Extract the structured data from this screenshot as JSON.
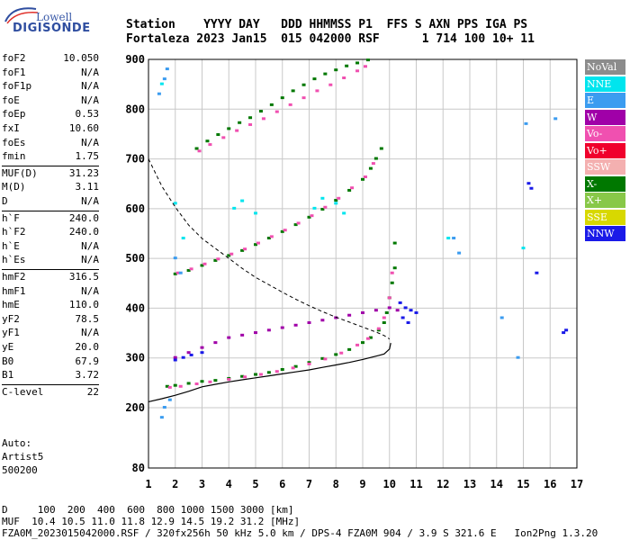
{
  "logo": {
    "top_text": "Lowell",
    "main_text": "DIGISONDE"
  },
  "header": {
    "row1": "Station    YYYY DAY   DDD HHMMSS P1  FFS S AXN PPS IGA PS",
    "row2": "Fortaleza 2023 Jan15  015 042000 RSF      1 714 100 10+ 11"
  },
  "params": [
    {
      "name": "foF2",
      "value": "10.050"
    },
    {
      "name": "foF1",
      "value": "N/A"
    },
    {
      "name": "foF1p",
      "value": "N/A"
    },
    {
      "name": "foE",
      "value": "N/A"
    },
    {
      "name": "foEp",
      "value": "0.53"
    },
    {
      "name": "fxI",
      "value": "10.60"
    },
    {
      "name": "foEs",
      "value": "N/A"
    },
    {
      "name": "fmin",
      "value": "1.75"
    },
    {
      "name": "MUF(D)",
      "value": "31.23"
    },
    {
      "name": "M(D)",
      "value": "3.11"
    },
    {
      "name": "D",
      "value": "N/A"
    },
    {
      "name": "h`F",
      "value": "240.0"
    },
    {
      "name": "h`F2",
      "value": "240.0"
    },
    {
      "name": "h`E",
      "value": "N/A"
    },
    {
      "name": "h`Es",
      "value": "N/A"
    },
    {
      "name": "hmF2",
      "value": "316.5"
    },
    {
      "name": "hmF1",
      "value": "N/A"
    },
    {
      "name": "hmE",
      "value": "110.0"
    },
    {
      "name": "yF2",
      "value": "78.5"
    },
    {
      "name": "yF1",
      "value": "N/A"
    },
    {
      "name": "yE",
      "value": "20.0"
    },
    {
      "name": "B0",
      "value": "67.9"
    },
    {
      "name": "B1",
      "value": "3.72"
    },
    {
      "name": "C-level",
      "value": "22"
    }
  ],
  "info": {
    "line1": "Auto:",
    "line2": "Artist5",
    "line3": "500200"
  },
  "legend": [
    {
      "label": "NoVal",
      "color": "#8c8c8c"
    },
    {
      "label": "NNE",
      "color": "#00e5ee"
    },
    {
      "label": "E",
      "color": "#3b9cf0"
    },
    {
      "label": "W",
      "color": "#a000a8"
    },
    {
      "label": "Vo-",
      "color": "#f050b0"
    },
    {
      "label": "Vo+",
      "color": "#f0002c"
    },
    {
      "label": "SSW",
      "color": "#f4b0b0"
    },
    {
      "label": "X-",
      "color": "#007800"
    },
    {
      "label": "X+",
      "color": "#88c848"
    },
    {
      "label": "SSE",
      "color": "#d8d800"
    },
    {
      "label": "NNW",
      "color": "#1a1ae8"
    }
  ],
  "footer": {
    "row1": "D     100  200  400  600  800 1000 1500 3000 [km]",
    "row2": "MUF  10.4 10.5 11.0 11.8 12.9 14.5 19.2 31.2 [MHz]",
    "row3": "FZA0M_2023015042000.RSF / 320fx256h 50 kHz 5.0 km / DPS-4 FZA0M 904 / 3.9 S 321.6 E   Ion2Png 1.3.20"
  },
  "chart_data": {
    "type": "scatter",
    "x_ticks": [
      1,
      2,
      3,
      4,
      5,
      6,
      7,
      8,
      9,
      10,
      11,
      12,
      13,
      14,
      15,
      16,
      17
    ],
    "y_ticks": [
      80,
      200,
      300,
      400,
      500,
      600,
      700,
      800,
      900
    ],
    "xlim": [
      1,
      17
    ],
    "ylim": [
      80,
      900
    ],
    "grid": true,
    "legend_position": "right",
    "series": [
      {
        "color": "#007800",
        "x": [
          1.7,
          2,
          2.5,
          3,
          3.5,
          4,
          4.5,
          5,
          5.5,
          6,
          6.5,
          7,
          7.5,
          8,
          8.5,
          9,
          9.3,
          9.6,
          9.8,
          9.9,
          10,
          10.1,
          10.2,
          10.2
        ],
        "y": [
          242,
          244,
          248,
          252,
          254,
          258,
          262,
          266,
          270,
          276,
          282,
          290,
          298,
          306,
          316,
          330,
          340,
          355,
          370,
          390,
          420,
          450,
          480,
          530
        ]
      },
      {
        "color": "#f050b0",
        "x": [
          1.8,
          2.2,
          2.8,
          3.3,
          4,
          4.6,
          5.2,
          5.8,
          6.4,
          7,
          7.6,
          8.2,
          8.8,
          9.2,
          9.6,
          9.8,
          10,
          10.1
        ],
        "y": [
          240,
          242,
          247,
          251,
          256,
          261,
          266,
          272,
          279,
          287,
          297,
          309,
          325,
          338,
          358,
          380,
          420,
          470
        ]
      },
      {
        "color": "#007800",
        "x": [
          2,
          2.5,
          3,
          3.5,
          4,
          4.5,
          5,
          5.5,
          6,
          6.5,
          7,
          7.5,
          8,
          8.5,
          9,
          9.3,
          9.5,
          9.7
        ],
        "y": [
          468,
          475,
          485,
          495,
          505,
          515,
          527,
          540,
          553,
          567,
          582,
          598,
          616,
          636,
          658,
          680,
          700,
          720
        ]
      },
      {
        "color": "#f050b0",
        "x": [
          2.1,
          2.6,
          3.1,
          3.6,
          4.1,
          4.6,
          5.1,
          5.6,
          6.1,
          6.6,
          7.1,
          7.6,
          8.1,
          8.6,
          9.1,
          9.4
        ],
        "y": [
          470,
          478,
          488,
          498,
          508,
          518,
          530,
          543,
          556,
          570,
          585,
          602,
          620,
          641,
          663,
          690
        ]
      },
      {
        "color": "#007800",
        "x": [
          2.8,
          3.2,
          3.6,
          4,
          4.4,
          4.8,
          5.2,
          5.6,
          6,
          6.4,
          6.8,
          7.2,
          7.6,
          8,
          8.4,
          8.8,
          9.2
        ],
        "y": [
          720,
          735,
          748,
          760,
          772,
          782,
          795,
          808,
          822,
          836,
          848,
          860,
          870,
          878,
          886,
          892,
          898
        ]
      },
      {
        "color": "#f050b0",
        "x": [
          2.9,
          3.3,
          3.8,
          4.3,
          4.8,
          5.3,
          5.8,
          6.3,
          6.8,
          7.3,
          7.8,
          8.3,
          8.8,
          9.1
        ],
        "y": [
          715,
          728,
          742,
          756,
          768,
          780,
          794,
          808,
          822,
          836,
          848,
          862,
          876,
          885
        ]
      },
      {
        "color": "#a000a8",
        "x": [
          2,
          2.5,
          3,
          3.5,
          4,
          4.5,
          5,
          5.5,
          6,
          6.5,
          7,
          7.5,
          8,
          8.5,
          9,
          9.5,
          10,
          10.3
        ],
        "y": [
          300,
          310,
          320,
          330,
          340,
          345,
          350,
          355,
          360,
          365,
          370,
          375,
          380,
          385,
          390,
          395,
          400,
          395
        ]
      },
      {
        "color": "#1a1ae8",
        "x": [
          2,
          2.3,
          2.6,
          3,
          10.4,
          10.6,
          10.8,
          11,
          10.5,
          10.7,
          16.5,
          16.6,
          15.2,
          15.3,
          15.5
        ],
        "y": [
          295,
          300,
          305,
          310,
          410,
          400,
          395,
          390,
          380,
          370,
          350,
          355,
          650,
          640,
          470
        ]
      },
      {
        "color": "#3b9cf0",
        "x": [
          1.4,
          1.6,
          1.7,
          2,
          2.2,
          1.5,
          1.6,
          1.8,
          12.4,
          12.6,
          14.2,
          14.8,
          15.1,
          16.2
        ],
        "y": [
          830,
          860,
          880,
          500,
          470,
          180,
          200,
          215,
          540,
          510,
          380,
          300,
          770,
          780
        ]
      },
      {
        "color": "#00e5ee",
        "x": [
          1.5,
          2,
          2.3,
          4.2,
          4.5,
          5,
          7.2,
          7.5,
          8,
          8.3,
          12.2,
          15
        ],
        "y": [
          850,
          610,
          540,
          600,
          615,
          590,
          600,
          620,
          610,
          590,
          540,
          520
        ]
      }
    ],
    "solid_curve": {
      "x": [
        1.0,
        1.5,
        2.0,
        2.5,
        3.0,
        3.5,
        4.0,
        4.5,
        5.0,
        5.5,
        6.0,
        6.5,
        7.0,
        7.5,
        8.0,
        8.5,
        9.0,
        9.3,
        9.6,
        9.8,
        10.0,
        10.05
      ],
      "y": [
        212,
        218,
        225,
        233,
        242,
        247,
        252,
        256,
        260,
        264,
        268,
        272,
        276,
        281,
        286,
        291,
        297,
        301,
        305,
        308,
        318,
        330
      ]
    },
    "dashed_curve": {
      "x": [
        1.0,
        1.5,
        2.0,
        2.5,
        3.0,
        3.5,
        4.0,
        4.5,
        5.0,
        5.5,
        6.0,
        6.5,
        7.0,
        7.5,
        8.0,
        8.5,
        9.0,
        9.5,
        9.8,
        10.0
      ],
      "y": [
        700,
        645,
        603,
        567,
        540,
        520,
        500,
        480,
        462,
        447,
        432,
        418,
        405,
        393,
        382,
        372,
        362,
        352,
        345,
        338
      ]
    }
  }
}
